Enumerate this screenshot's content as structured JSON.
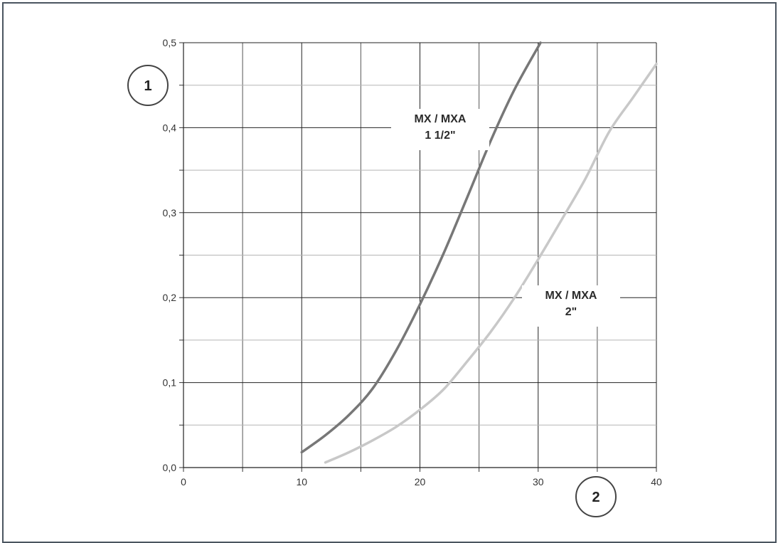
{
  "chart_data": {
    "type": "line",
    "xlim": [
      0,
      40
    ],
    "ylim": [
      0,
      0.5
    ],
    "x_ticks": [
      "0",
      "10",
      "20",
      "30",
      "40"
    ],
    "y_ticks": [
      "0,0",
      "0,1",
      "0,2",
      "0,3",
      "0,4",
      "0,5"
    ],
    "grid": true,
    "axis_badges": {
      "y": "1",
      "x": "2"
    },
    "series": [
      {
        "name_lines": [
          "MX / MXA",
          "1 1/2\""
        ],
        "color": "#777777",
        "x": [
          10,
          12,
          14,
          16,
          18,
          20,
          22,
          24,
          26,
          28,
          30.2
        ],
        "y": [
          0.018,
          0.038,
          0.062,
          0.093,
          0.138,
          0.192,
          0.252,
          0.318,
          0.385,
          0.445,
          0.5
        ]
      },
      {
        "name_lines": [
          "MX / MXA",
          "2\""
        ],
        "color": "#c8c8c8",
        "x": [
          12,
          14,
          16,
          18,
          20,
          22,
          24,
          26,
          28,
          30,
          32,
          34,
          36,
          38,
          40
        ],
        "y": [
          0.006,
          0.018,
          0.032,
          0.048,
          0.068,
          0.092,
          0.125,
          0.16,
          0.2,
          0.245,
          0.292,
          0.34,
          0.395,
          0.435,
          0.475
        ]
      }
    ]
  }
}
